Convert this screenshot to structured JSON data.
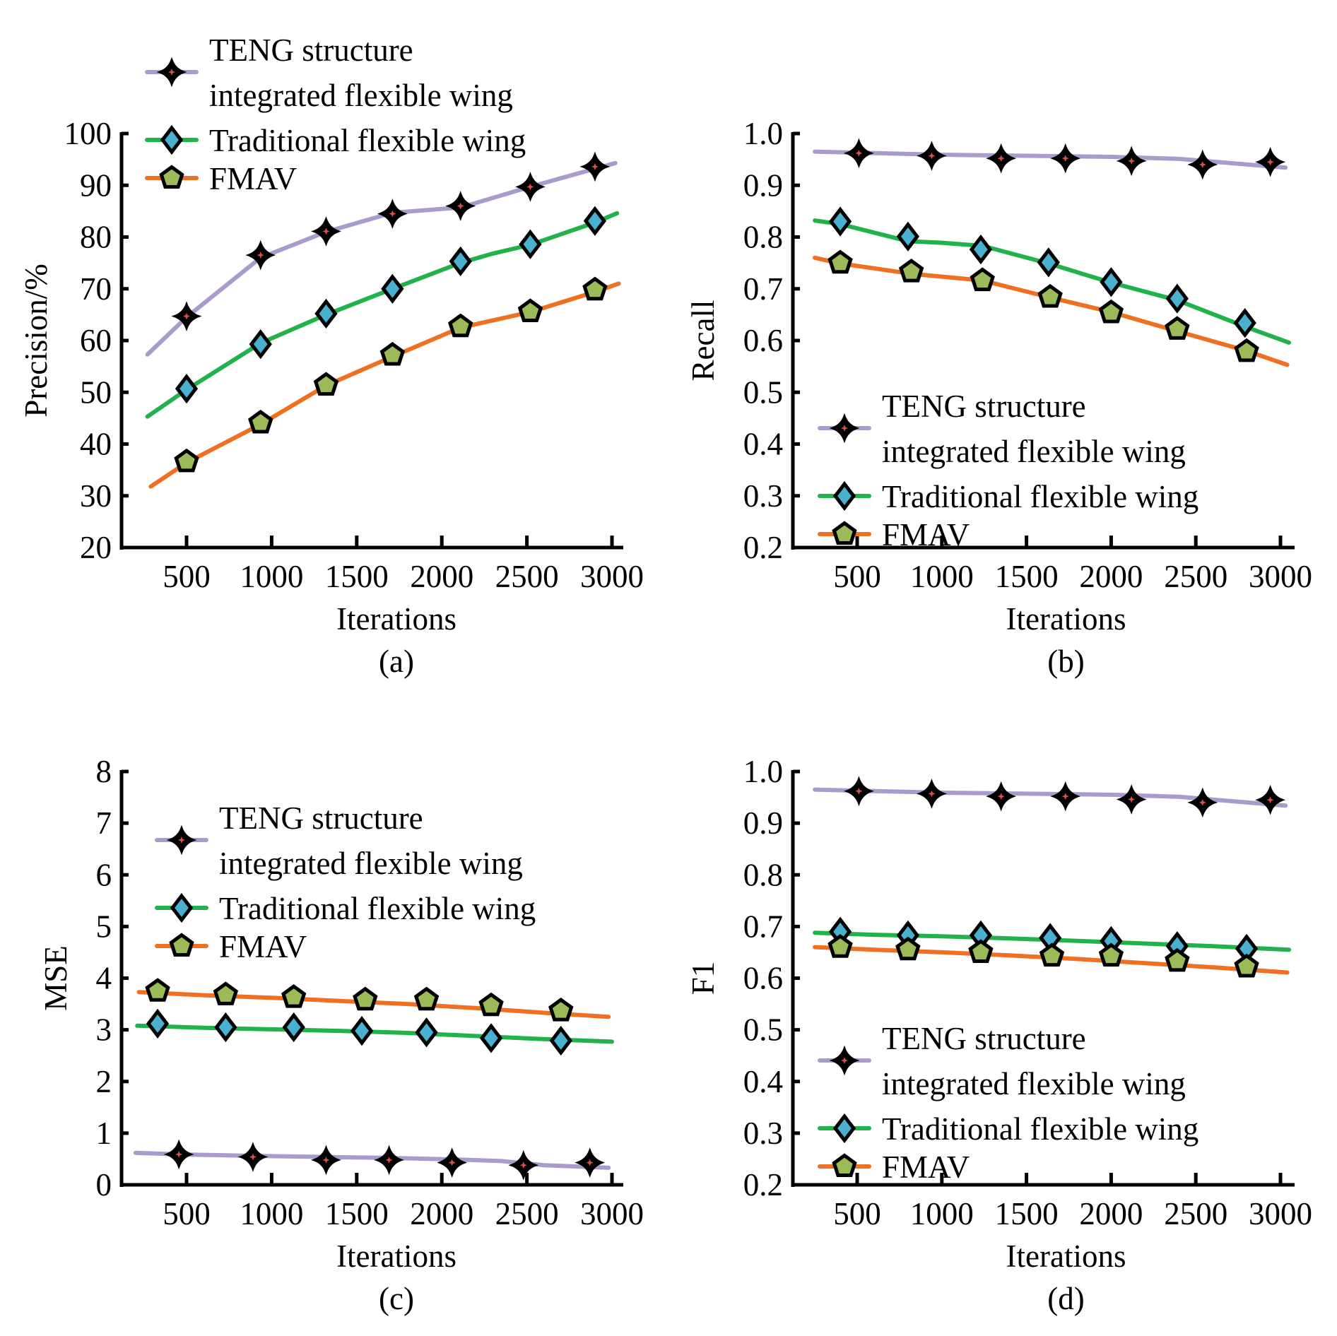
{
  "figure": {
    "series_styles": [
      {
        "key": "teng",
        "name": "TENG structure integrated flexible wing",
        "legend_lines": [
          "TENG structure",
          "integrated flexible wing"
        ],
        "line_color": "#a99bcb",
        "marker": "star",
        "marker_fill": "#e0504a",
        "marker_stroke": "#000000"
      },
      {
        "key": "traditional",
        "name": "Traditional flexible wing",
        "legend_lines": [
          "Traditional flexible wing"
        ],
        "line_color": "#22b24c",
        "marker": "diamond",
        "marker_fill": "#4ab0d0",
        "marker_stroke": "#000000"
      },
      {
        "key": "fmav",
        "name": "FMAV",
        "legend_lines": [
          "FMAV"
        ],
        "line_color": "#ee7020",
        "marker": "pentagon",
        "marker_fill": "#9bbb59",
        "marker_stroke": "#000000"
      }
    ]
  },
  "chart_data": [
    {
      "id": "a",
      "type": "line",
      "panel_label": "(a)",
      "title": "",
      "xlabel": "Iterations",
      "ylabel": "Precision/%",
      "xlim": [
        250,
        3050
      ],
      "ylim": [
        20,
        100
      ],
      "xticks": [
        500,
        1000,
        1500,
        2000,
        2500,
        3000
      ],
      "xtick_labels": [
        "500",
        "1000",
        "1500",
        "2000",
        "2500",
        "3000"
      ],
      "yticks": [
        20,
        30,
        40,
        50,
        60,
        70,
        80,
        90,
        100
      ],
      "ytick_labels": [
        "20",
        "30",
        "40",
        "50",
        "60",
        "70",
        "80",
        "90",
        "100"
      ],
      "grid": false,
      "legend_position": "top",
      "series": [
        {
          "key": "teng",
          "name": "TENG structure integrated flexible wing",
          "line": {
            "x": [
              270,
              500,
              935,
              1320,
              1710,
              2110,
              2520,
              2900,
              3020
            ],
            "y": [
              57.3,
              64.5,
              76.0,
              81.0,
              84.7,
              85.7,
              89.7,
              93.2,
              94.3
            ]
          },
          "points": {
            "x": [
              500,
              935,
              1320,
              1710,
              2110,
              2520,
              2900
            ],
            "y": [
              64.7,
              76.5,
              81.1,
              84.5,
              86.0,
              89.7,
              93.6
            ]
          }
        },
        {
          "key": "traditional",
          "name": "Traditional flexible wing",
          "line": {
            "x": [
              270,
              500,
              935,
              1320,
              1710,
              2110,
              2300,
              2520,
              2900,
              3030
            ],
            "y": [
              45.3,
              50.5,
              59.5,
              65.0,
              70.0,
              75.0,
              76.8,
              78.5,
              82.8,
              84.6
            ]
          },
          "points": {
            "x": [
              500,
              935,
              1320,
              1710,
              2110,
              2520,
              2900
            ],
            "y": [
              50.7,
              59.3,
              65.2,
              70.0,
              75.3,
              78.6,
              83.1
            ]
          }
        },
        {
          "key": "fmav",
          "name": "FMAV",
          "line": {
            "x": [
              290,
              500,
              935,
              1320,
              1710,
              2110,
              2520,
              2900,
              3040
            ],
            "y": [
              31.8,
              36.4,
              43.8,
              51.3,
              56.9,
              62.5,
              65.5,
              69.4,
              71.0
            ]
          },
          "points": {
            "x": [
              500,
              935,
              1320,
              1710,
              2110,
              2520,
              2900
            ],
            "y": [
              36.6,
              44.1,
              51.4,
              57.2,
              62.7,
              65.6,
              69.8
            ]
          }
        }
      ]
    },
    {
      "id": "b",
      "type": "line",
      "panel_label": "(b)",
      "title": "",
      "xlabel": "Iterations",
      "ylabel": "Recall",
      "xlim": [
        250,
        3050
      ],
      "ylim": [
        0.2,
        1.0
      ],
      "xticks": [
        500,
        1000,
        1500,
        2000,
        2500,
        3000
      ],
      "xtick_labels": [
        "500",
        "1000",
        "1500",
        "2000",
        "2500",
        "3000"
      ],
      "yticks": [
        0.2,
        0.3,
        0.4,
        0.5,
        0.6,
        0.7,
        0.8,
        0.9,
        1.0
      ],
      "ytick_labels": [
        "0.2",
        "0.3",
        "0.4",
        "0.5",
        "0.6",
        "0.7",
        "0.8",
        "0.9",
        "1.0"
      ],
      "grid": false,
      "legend_position": "lower-right",
      "series": [
        {
          "key": "teng",
          "name": "TENG structure integrated flexible wing",
          "line": {
            "x": [
              250,
              500,
              1000,
              1500,
              2000,
              2400,
              2700,
              3030
            ],
            "y": [
              0.965,
              0.963,
              0.959,
              0.957,
              0.955,
              0.951,
              0.943,
              0.934
            ]
          },
          "points": {
            "x": [
              510,
              940,
              1350,
              1730,
              2120,
              2540,
              2940
            ],
            "y": [
              0.962,
              0.957,
              0.952,
              0.952,
              0.947,
              0.94,
              0.945
            ]
          }
        },
        {
          "key": "traditional",
          "name": "Traditional flexible wing",
          "line": {
            "x": [
              250,
              400,
              800,
              1000,
              1240,
              1630,
              2000,
              2390,
              2790,
              3050
            ],
            "y": [
              0.832,
              0.825,
              0.792,
              0.789,
              0.783,
              0.749,
              0.712,
              0.678,
              0.627,
              0.596
            ]
          },
          "points": {
            "x": [
              400,
              800,
              1230,
              1630,
              2000,
              2390,
              2790
            ],
            "y": [
              0.83,
              0.801,
              0.776,
              0.751,
              0.713,
              0.681,
              0.634
            ]
          }
        },
        {
          "key": "fmav",
          "name": "FMAV",
          "line": {
            "x": [
              250,
              400,
              820,
              1240,
              1630,
              2000,
              2390,
              2790,
              3040
            ],
            "y": [
              0.76,
              0.749,
              0.729,
              0.716,
              0.684,
              0.655,
              0.618,
              0.581,
              0.553
            ]
          },
          "points": {
            "x": [
              400,
              820,
              1240,
              1640,
              2000,
              2390,
              2800
            ],
            "y": [
              0.75,
              0.733,
              0.716,
              0.684,
              0.654,
              0.622,
              0.579
            ]
          }
        }
      ]
    },
    {
      "id": "c",
      "type": "line",
      "panel_label": "(c)",
      "title": "",
      "xlabel": "Iterations",
      "ylabel": "MSE",
      "xlim": [
        250,
        3050
      ],
      "ylim": [
        0,
        8
      ],
      "xticks": [
        500,
        1000,
        1500,
        2000,
        2500,
        3000
      ],
      "xtick_labels": [
        "500",
        "1000",
        "1500",
        "2000",
        "2500",
        "3000"
      ],
      "yticks": [
        0,
        1,
        2,
        3,
        4,
        5,
        6,
        7,
        8
      ],
      "ytick_labels": [
        "0",
        "1",
        "2",
        "3",
        "4",
        "5",
        "6",
        "7",
        "8"
      ],
      "grid": false,
      "legend_position": "top",
      "series": [
        {
          "key": "teng",
          "name": "TENG structure integrated flexible wing",
          "line": {
            "x": [
              200,
              450,
              900,
              1300,
              1700,
              2100,
              2350,
              2600,
              2980
            ],
            "y": [
              0.62,
              0.59,
              0.56,
              0.54,
              0.52,
              0.49,
              0.46,
              0.38,
              0.33
            ]
          },
          "points": {
            "x": [
              455,
              890,
              1320,
              1690,
              2060,
              2480,
              2870
            ],
            "y": [
              0.59,
              0.54,
              0.48,
              0.48,
              0.43,
              0.38,
              0.43
            ]
          }
        },
        {
          "key": "traditional",
          "name": "Traditional flexible wing",
          "line": {
            "x": [
              210,
              600,
              1000,
              1400,
              1800,
              2200,
              2600,
              3000
            ],
            "y": [
              3.08,
              3.04,
              3.01,
              2.98,
              2.94,
              2.88,
              2.82,
              2.77
            ]
          },
          "points": {
            "x": [
              330,
              730,
              1130,
              1530,
              1910,
              2290,
              2700
            ],
            "y": [
              3.12,
              3.05,
              3.05,
              2.98,
              2.95,
              2.84,
              2.79
            ]
          }
        },
        {
          "key": "fmav",
          "name": "FMAV",
          "line": {
            "x": [
              220,
              600,
              1000,
              1400,
              1800,
              2200,
              2600,
              2980
            ],
            "y": [
              3.73,
              3.67,
              3.62,
              3.56,
              3.5,
              3.42,
              3.33,
              3.25
            ]
          },
          "points": {
            "x": [
              330,
              730,
              1130,
              1550,
              1910,
              2290,
              2700
            ],
            "y": [
              3.75,
              3.68,
              3.63,
              3.58,
              3.58,
              3.47,
              3.37
            ]
          }
        }
      ]
    },
    {
      "id": "d",
      "type": "line",
      "panel_label": "(d)",
      "title": "",
      "xlabel": "Iterations",
      "ylabel": "F1",
      "xlim": [
        250,
        3050
      ],
      "ylim": [
        0.2,
        1.0
      ],
      "xticks": [
        500,
        1000,
        1500,
        2000,
        2500,
        3000
      ],
      "xtick_labels": [
        "500",
        "1000",
        "1500",
        "2000",
        "2500",
        "3000"
      ],
      "yticks": [
        0.2,
        0.3,
        0.4,
        0.5,
        0.6,
        0.7,
        0.8,
        0.9,
        1.0
      ],
      "ytick_labels": [
        "0.2",
        "0.3",
        "0.4",
        "0.5",
        "0.6",
        "0.7",
        "0.8",
        "0.9",
        "1.0"
      ],
      "grid": false,
      "legend_position": "lower-right",
      "series": [
        {
          "key": "teng",
          "name": "TENG structure integrated flexible wing",
          "line": {
            "x": [
              250,
              500,
              1000,
              1500,
              2000,
              2400,
              2700,
              3030
            ],
            "y": [
              0.965,
              0.963,
              0.959,
              0.957,
              0.955,
              0.951,
              0.943,
              0.934
            ]
          },
          "points": {
            "x": [
              510,
              940,
              1350,
              1730,
              2120,
              2540,
              2940
            ],
            "y": [
              0.962,
              0.957,
              0.952,
              0.952,
              0.946,
              0.94,
              0.945
            ]
          }
        },
        {
          "key": "traditional",
          "name": "Traditional flexible wing",
          "line": {
            "x": [
              250,
              600,
              1000,
              1400,
              1800,
              2200,
              2600,
              3050
            ],
            "y": [
              0.688,
              0.684,
              0.681,
              0.677,
              0.672,
              0.667,
              0.662,
              0.655
            ]
          },
          "points": {
            "x": [
              400,
              800,
              1230,
              1640,
              2000,
              2390,
              2800
            ],
            "y": [
              0.69,
              0.683,
              0.683,
              0.678,
              0.672,
              0.662,
              0.657
            ]
          }
        },
        {
          "key": "fmav",
          "name": "FMAV",
          "line": {
            "x": [
              250,
              600,
              1000,
              1400,
              1800,
              2200,
              2600,
              3040
            ],
            "y": [
              0.66,
              0.655,
              0.65,
              0.644,
              0.637,
              0.629,
              0.621,
              0.611
            ]
          },
          "points": {
            "x": [
              400,
              800,
              1230,
              1650,
              2000,
              2390,
              2800
            ],
            "y": [
              0.66,
              0.655,
              0.65,
              0.643,
              0.643,
              0.633,
              0.622
            ]
          }
        }
      ]
    }
  ]
}
